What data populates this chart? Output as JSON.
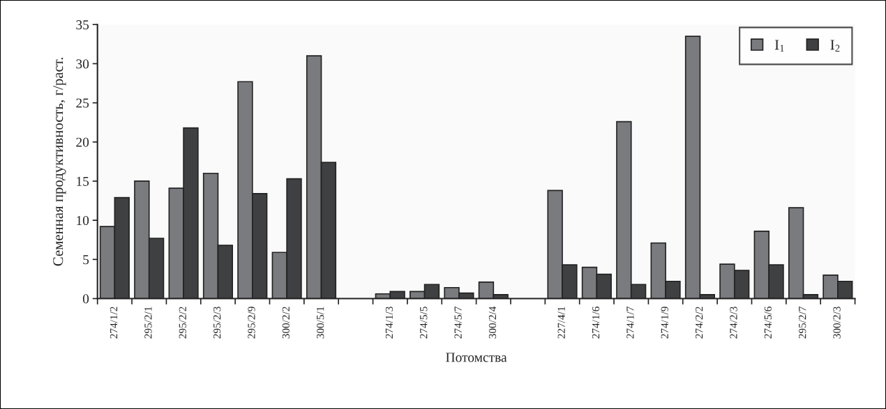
{
  "chart_data": {
    "type": "bar",
    "xlabel": "Потомства",
    "ylabel": "Семенная продуктивность, г/раст.",
    "categories": [
      "274/1/2",
      "295/2/1",
      "295/2/2",
      "295/2/3",
      "295/2/9",
      "300/2/2",
      "300/5/1",
      null,
      "274/1/3",
      "274/5/5",
      "274/5/7",
      "300/2/4",
      null,
      "227/4/1",
      "274/1/6",
      "274/1/7",
      "274/1/9",
      "274/2/2",
      "274/2/3",
      "274/5/6",
      "295/2/7",
      "300/2/3"
    ],
    "series": [
      {
        "name": "I$_{1}$",
        "color": "#7a7b7f",
        "values": [
          9.2,
          15.0,
          14.1,
          16.0,
          27.7,
          5.9,
          31.0,
          null,
          0.6,
          0.9,
          1.4,
          2.1,
          null,
          13.8,
          4.0,
          22.6,
          7.1,
          33.5,
          4.4,
          8.6,
          11.6,
          3.0
        ]
      },
      {
        "name": "I$_{2}$",
        "color": "#3f4042",
        "values": [
          12.9,
          7.7,
          21.8,
          6.8,
          13.4,
          15.3,
          17.4,
          null,
          0.9,
          1.8,
          0.7,
          0.5,
          null,
          4.3,
          3.1,
          1.8,
          2.2,
          0.5,
          3.6,
          4.3,
          0.5,
          2.2
        ]
      }
    ],
    "ylim": [
      0,
      35
    ],
    "yticks": [
      0,
      5,
      10,
      15,
      20,
      25,
      30,
      35
    ],
    "grid": false,
    "legend": "top right"
  }
}
